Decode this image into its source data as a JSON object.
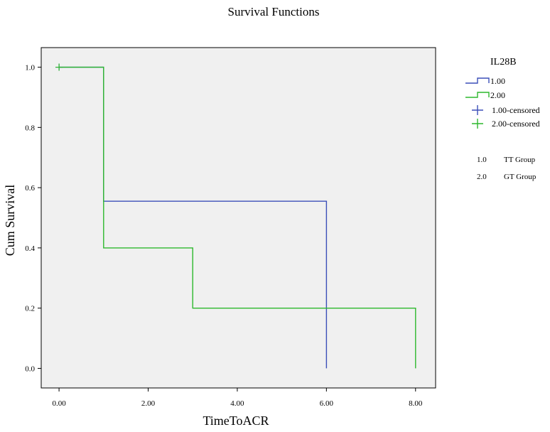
{
  "chart_data": {
    "type": "line",
    "step": true,
    "title": "Survival Functions",
    "xlabel": "TimeToACR",
    "ylabel": "Cum Survival",
    "xlim": [
      -0.4,
      8.45
    ],
    "ylim": [
      -0.065,
      1.065
    ],
    "x_ticks": [
      0,
      2,
      4,
      6,
      8
    ],
    "x_tick_labels": [
      "0.00",
      "2.00",
      "4.00",
      "6.00",
      "8.00"
    ],
    "y_ticks": [
      0,
      0.2,
      0.4,
      0.6,
      0.8,
      1.0
    ],
    "y_tick_labels": [
      "0.0",
      "0.2",
      "0.4",
      "0.6",
      "0.8",
      "1.0"
    ],
    "grid": false,
    "plot_background": "#f0f0f0",
    "legend": {
      "title": "IL28B",
      "position": "right",
      "entries": [
        {
          "label": "1.00",
          "kind": "line",
          "color": "#3b4fb8"
        },
        {
          "label": "2.00",
          "kind": "line",
          "color": "#2db82d"
        },
        {
          "label": "1.00-censored",
          "kind": "censor",
          "color": "#3b4fb8"
        },
        {
          "label": "2.00-censored",
          "kind": "censor",
          "color": "#2db82d"
        }
      ]
    },
    "groups": [
      {
        "code": "1.0",
        "name": "TT Group"
      },
      {
        "code": "2.0",
        "name": "GT Group"
      }
    ],
    "series": [
      {
        "name": "1.00",
        "color": "#3b4fb8",
        "x": [
          0,
          1,
          1,
          6,
          6
        ],
        "y": [
          1.0,
          1.0,
          0.555,
          0.555,
          0.0
        ],
        "censored": [
          {
            "x": 0,
            "y": 1.0
          }
        ]
      },
      {
        "name": "2.00",
        "color": "#2db82d",
        "x": [
          0,
          1,
          1,
          3,
          3,
          8,
          8
        ],
        "y": [
          1.0,
          1.0,
          0.4,
          0.4,
          0.2,
          0.2,
          0.0
        ],
        "censored": [
          {
            "x": 0,
            "y": 1.0
          }
        ]
      }
    ]
  }
}
